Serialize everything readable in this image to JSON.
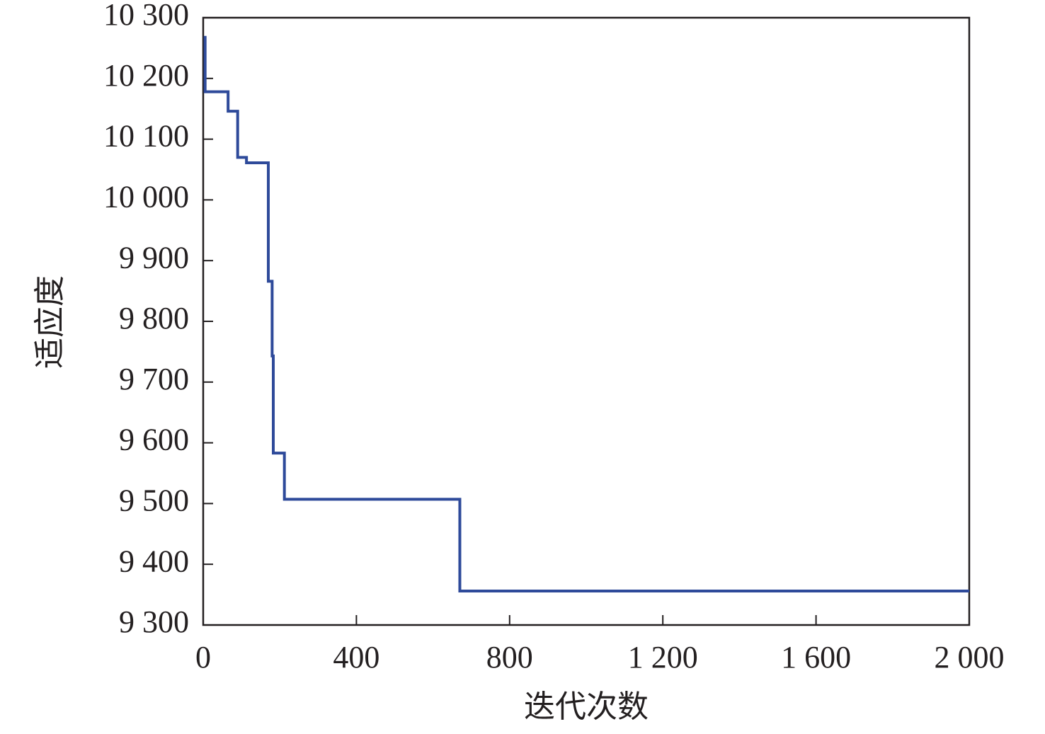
{
  "chart_data": {
    "type": "line",
    "x_label": "迭代次数",
    "y_label": "适应度",
    "color": "#2e4a9a",
    "x": [
      5,
      5,
      65,
      65,
      90,
      90,
      113,
      113,
      170,
      170,
      180,
      180,
      183,
      183,
      212,
      212,
      670,
      670,
      2000
    ],
    "values": [
      10270,
      10178,
      10178,
      10146,
      10146,
      10070,
      10070,
      10061,
      10061,
      9866,
      9866,
      9743,
      9743,
      9583,
      9583,
      9507,
      9507,
      9356,
      9356
    ],
    "xlim": [
      0,
      2000
    ],
    "xticks": [
      0,
      400,
      800,
      {
        "value": 1200,
        "label": "1 200"
      },
      {
        "value": 1600,
        "label": "1 600"
      },
      {
        "value": 2000,
        "label": "2 000"
      }
    ],
    "ylim": [
      9300,
      10300
    ],
    "yticks": [
      {
        "value": 9300,
        "label": "9 300"
      },
      {
        "value": 9400,
        "label": "9 400"
      },
      {
        "value": 9500,
        "label": "9 500"
      },
      {
        "value": 9600,
        "label": "9 600"
      },
      {
        "value": 9700,
        "label": "9 700"
      },
      {
        "value": 9800,
        "label": "9 800"
      },
      {
        "value": 9900,
        "label": "9 900"
      },
      {
        "value": 10000,
        "label": "10 000"
      },
      {
        "value": 10100,
        "label": "10 100"
      },
      {
        "value": 10200,
        "label": "10 200"
      },
      {
        "value": 10300,
        "label": "10 300"
      }
    ]
  }
}
